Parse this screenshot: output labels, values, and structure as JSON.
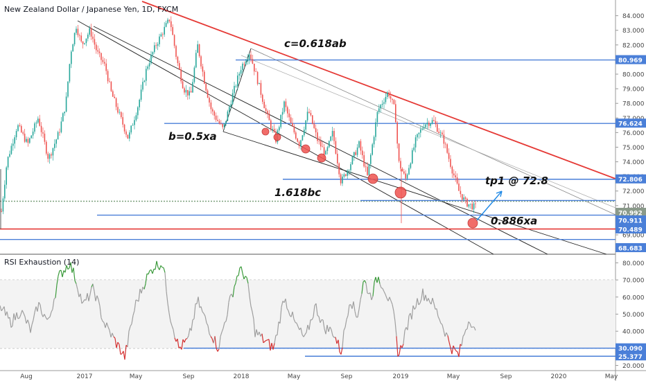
{
  "chart_title": "New Zealand Dollar / Japanese Yen, 1D, FXCM",
  "rsi_title": "RSI Exhaustion (14)",
  "colors": {
    "up": "#26a69a",
    "down": "#ef5350",
    "red_line": "#e53935",
    "blue_line": "#4a7fd8",
    "channel": "#333333",
    "rsi_gray": "#9e9e9e",
    "rsi_green": "#3b9a3b",
    "rsi_red": "#d32f2f"
  },
  "annotations": {
    "c_label": "c=0.618ab",
    "b_label": "b=0.5xa",
    "bc_label": "1.618bc",
    "tp_label": "tp1 @ 72.8",
    "xa_label": "0.886xa"
  },
  "chart_data": [
    {
      "type": "candlestick",
      "title": "New Zealand Dollar / Japanese Yen, 1D, FXCM",
      "y_ticks": [
        "84.000",
        "83.000",
        "82.000",
        "81.000",
        "80.000",
        "79.000",
        "78.000",
        "77.000",
        "76.000",
        "75.000",
        "74.000",
        "73.000",
        "72.000",
        "71.000",
        "69.000"
      ],
      "x_ticks": [
        "Aug",
        "2017",
        "May",
        "Sep",
        "2018",
        "May",
        "Sep",
        "2019",
        "May",
        "Sep",
        "2020",
        "May"
      ],
      "price_labels": [
        {
          "label": "80.969",
          "style": "blue"
        },
        {
          "label": "76.624",
          "style": "blue"
        },
        {
          "label": "72.806",
          "style": "blue"
        },
        {
          "label": "70.992",
          "style": "gray"
        },
        {
          "label": "70.911",
          "style": "blue"
        },
        {
          "label": "70.489",
          "style": "blue"
        },
        {
          "label": "68.683",
          "style": "blue"
        }
      ],
      "ylim": [
        68.1,
        84.6
      ]
    },
    {
      "type": "line",
      "title": "RSI Exhaustion (14)",
      "y_ticks": [
        "80.000",
        "70.000",
        "60.000",
        "50.000",
        "40.000",
        "30.000",
        "20.000"
      ],
      "price_labels": [
        {
          "label": "30.090",
          "style": "blue"
        },
        {
          "label": "25.377",
          "style": "blue"
        }
      ],
      "ylim": [
        19,
        83
      ]
    }
  ]
}
